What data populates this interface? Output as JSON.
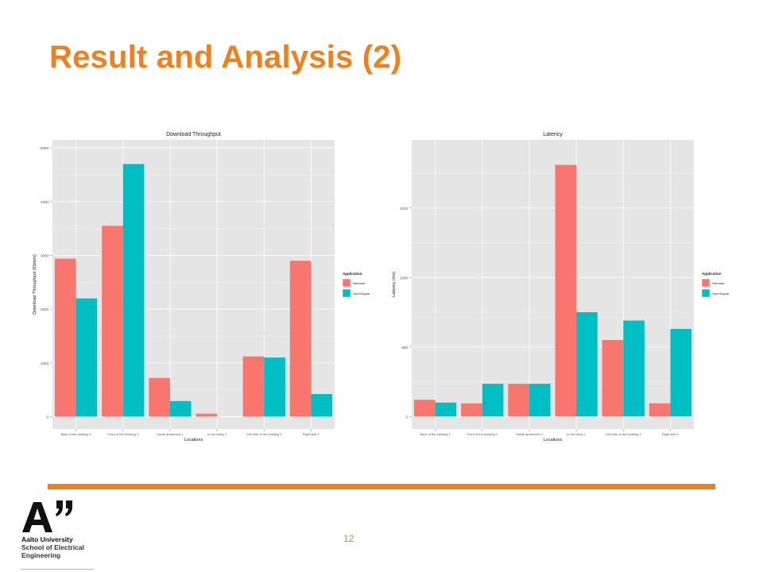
{
  "slide": {
    "title": "Result and Analysis (2)",
    "page_number": "12"
  },
  "logo": {
    "mark": "A”",
    "line1": "Aalto University",
    "line2": "School of Electrical",
    "line3": "Engineering"
  },
  "colors": {
    "accent": "#f0801e",
    "netradar": "#f8766d",
    "opensignal": "#00bfc4",
    "panel_bg": "#e5e5e5",
    "grid": "#f5f5f5"
  },
  "chart_data": [
    {
      "type": "bar",
      "title": "Download Throughput",
      "xlabel": "Locations",
      "ylabel": "Download Throughput (Kbits/s)",
      "categories": [
        "Back of the building 1",
        "Front of the building 1",
        "Inside apartment 1",
        "In the lobby 1",
        "Left side of the building 1",
        "Right side 1"
      ],
      "series": [
        {
          "name": "Netradar",
          "values": [
            2940,
            3550,
            720,
            55,
            1120,
            2900
          ]
        },
        {
          "name": "OpenSignal",
          "values": [
            2200,
            4700,
            290,
            0,
            1100,
            420
          ]
        }
      ],
      "ylim": [
        -230,
        5150
      ],
      "yticks": [
        0,
        1000,
        2000,
        3000,
        4000,
        5000
      ],
      "legend": {
        "title": "Application",
        "position": "right"
      },
      "grid": true
    },
    {
      "type": "bar",
      "title": "Latency",
      "xlabel": "Locations",
      "ylabel": "Latency (ms)",
      "categories": [
        "Back of the building 1",
        "Front of the building 1",
        "Inside apartment 1",
        "In the lobby 1",
        "Left side of the building 1",
        "Right side 1"
      ],
      "series": [
        {
          "name": "Netradar",
          "values": [
            120,
            95,
            235,
            1810,
            550,
            95
          ]
        },
        {
          "name": "OpenSignal",
          "values": [
            100,
            235,
            235,
            750,
            690,
            630
          ]
        }
      ],
      "ylim": [
        -90,
        1990
      ],
      "yticks": [
        0,
        500,
        1000,
        1500
      ],
      "legend": {
        "title": "Application",
        "position": "right"
      },
      "grid": true
    }
  ]
}
